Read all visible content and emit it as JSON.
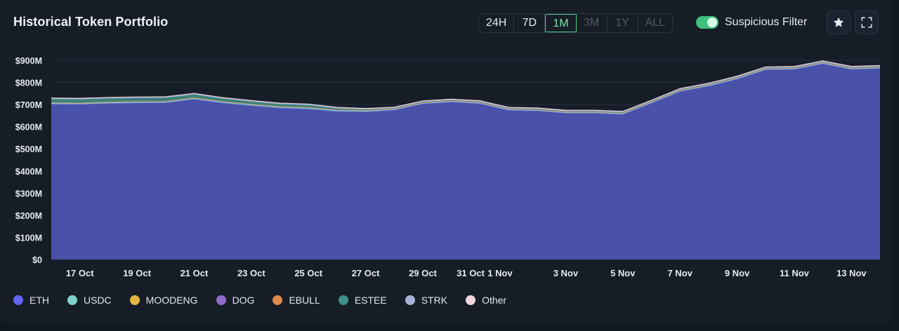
{
  "header": {
    "title": "Historical Token Portfolio",
    "ranges": [
      {
        "label": "24H",
        "state": "normal"
      },
      {
        "label": "7D",
        "state": "normal"
      },
      {
        "label": "1M",
        "state": "active"
      },
      {
        "label": "3M",
        "state": "disabled"
      },
      {
        "label": "1Y",
        "state": "disabled"
      },
      {
        "label": "ALL",
        "state": "disabled"
      }
    ],
    "filter_label": "Suspicious Filter",
    "filter_on": true,
    "star_icon": "star-icon",
    "expand_icon": "expand-icon"
  },
  "chart_data": {
    "type": "area",
    "stacked": true,
    "title": "Historical Token Portfolio",
    "xlabel": "",
    "ylabel": "",
    "ylim": [
      0,
      900
    ],
    "y_unit": "M USD",
    "y_ticks": [
      "$0",
      "$100M",
      "$200M",
      "$300M",
      "$400M",
      "$500M",
      "$600M",
      "$700M",
      "$800M",
      "$900M"
    ],
    "x_tick_labels": [
      "17 Oct",
      "19 Oct",
      "21 Oct",
      "23 Oct",
      "25 Oct",
      "27 Oct",
      "29 Oct",
      "31 Oct",
      "1 Nov",
      "3 Nov",
      "5 Nov",
      "7 Nov",
      "9 Nov",
      "11 Nov",
      "13 Nov"
    ],
    "x": [
      "16 Oct",
      "17 Oct",
      "18 Oct",
      "19 Oct",
      "20 Oct",
      "21 Oct",
      "22 Oct",
      "23 Oct",
      "24 Oct",
      "25 Oct",
      "26 Oct",
      "27 Oct",
      "28 Oct",
      "29 Oct",
      "30 Oct",
      "31 Oct",
      "1 Nov",
      "2 Nov",
      "3 Nov",
      "4 Nov",
      "5 Nov",
      "6 Nov",
      "7 Nov",
      "8 Nov",
      "9 Nov",
      "10 Nov",
      "11 Nov",
      "12 Nov",
      "13 Nov",
      "14 Nov"
    ],
    "series": [
      {
        "name": "ETH",
        "color": "#6366f1",
        "values": [
          703,
          702,
          706,
          708,
          709,
          725,
          708,
          696,
          685,
          681,
          670,
          668,
          676,
          704,
          712,
          705,
          675,
          672,
          662,
          662,
          657,
          707,
          760,
          784,
          816,
          858,
          860,
          885,
          860,
          864
        ]
      },
      {
        "name": "USDC",
        "color": "#7dd3c8",
        "values": [
          4,
          4,
          4,
          4,
          4,
          4,
          4,
          4,
          4,
          4,
          4,
          4,
          3,
          3,
          3,
          3,
          3,
          3,
          3,
          3,
          3,
          3,
          3,
          3,
          3,
          3,
          3,
          3,
          3,
          3
        ]
      },
      {
        "name": "MOODENG",
        "color": "#e3b341",
        "values": [
          1,
          1,
          1,
          1,
          1,
          1,
          1,
          1,
          1,
          1,
          1,
          1,
          1,
          1,
          1,
          1,
          1,
          1,
          1,
          1,
          1,
          1,
          1,
          1,
          1,
          1,
          1,
          1,
          1,
          1
        ]
      },
      {
        "name": "DOG",
        "color": "#8e6cc6",
        "values": [
          1,
          1,
          1,
          1,
          1,
          1,
          1,
          1,
          1,
          1,
          1,
          1,
          1,
          1,
          1,
          1,
          1,
          1,
          1,
          1,
          1,
          1,
          1,
          1,
          1,
          1,
          1,
          1,
          1,
          1
        ]
      },
      {
        "name": "EBULL",
        "color": "#e08a4a",
        "values": [
          1,
          1,
          1,
          1,
          1,
          1,
          1,
          1,
          1,
          1,
          1,
          1,
          1,
          1,
          1,
          1,
          1,
          1,
          1,
          1,
          1,
          1,
          1,
          1,
          1,
          1,
          1,
          1,
          1,
          1
        ]
      },
      {
        "name": "ESTEE",
        "color": "#3f8f84",
        "values": [
          15,
          15,
          15,
          15,
          15,
          14,
          12,
          11,
          10,
          10,
          6,
          3,
          2,
          2,
          2,
          2,
          2,
          2,
          2,
          2,
          2,
          2,
          2,
          2,
          2,
          2,
          2,
          2,
          2,
          2
        ]
      },
      {
        "name": "STRK",
        "color": "#aab1d6",
        "values": [
          3,
          3,
          3,
          3,
          3,
          3,
          3,
          3,
          3,
          3,
          3,
          3,
          3,
          3,
          3,
          3,
          3,
          3,
          3,
          3,
          3,
          3,
          3,
          3,
          3,
          3,
          3,
          3,
          3,
          3
        ]
      },
      {
        "name": "Other",
        "color": "#f5d6e0",
        "values": [
          2,
          2,
          2,
          2,
          2,
          2,
          2,
          2,
          2,
          2,
          2,
          2,
          2,
          2,
          2,
          2,
          2,
          2,
          2,
          2,
          2,
          2,
          2,
          2,
          2,
          2,
          2,
          2,
          2,
          2
        ]
      }
    ],
    "grid": true,
    "legend_position": "bottom-left"
  }
}
